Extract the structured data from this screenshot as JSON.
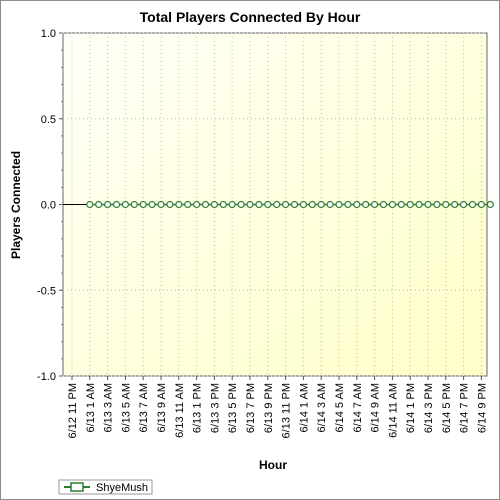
{
  "chart_data": {
    "type": "line",
    "title": "Total Players Connected By Hour",
    "xlabel": "Hour",
    "ylabel": "Players Connected",
    "ylim": [
      -1.0,
      1.0
    ],
    "y_ticks": [
      "1.0",
      "0.5",
      "0.0",
      "-0.5",
      "-1.0"
    ],
    "grid": true,
    "legend_position": "bottom-left",
    "x_tick_labels": [
      "6/12 11 PM",
      "6/13 1 AM",
      "6/13 3 AM",
      "6/13 5 AM",
      "6/13 7 AM",
      "6/13 9 AM",
      "6/13 11 AM",
      "6/13 1 PM",
      "6/13 3 PM",
      "6/13 5 PM",
      "6/13 7 PM",
      "6/13 9 PM",
      "6/13 11 PM",
      "6/14 1 AM",
      "6/14 3 AM",
      "6/14 5 AM",
      "6/14 7 AM",
      "6/14 9 AM",
      "6/14 11 AM",
      "6/14 1 PM",
      "6/14 3 PM",
      "6/14 5 PM",
      "6/14 7 PM",
      "6/14 9 PM"
    ],
    "series": [
      {
        "name": "ShyeMush",
        "color": "#2e7d32",
        "x": [
          "6/13 1 AM",
          "6/13 2 AM",
          "6/13 3 AM",
          "6/13 4 AM",
          "6/13 5 AM",
          "6/13 6 AM",
          "6/13 7 AM",
          "6/13 8 AM",
          "6/13 9 AM",
          "6/13 10 AM",
          "6/13 11 AM",
          "6/13 12 PM",
          "6/13 1 PM",
          "6/13 2 PM",
          "6/13 3 PM",
          "6/13 4 PM",
          "6/13 5 PM",
          "6/13 6 PM",
          "6/13 7 PM",
          "6/13 8 PM",
          "6/13 9 PM",
          "6/13 10 PM",
          "6/13 11 PM",
          "6/14 12 AM",
          "6/14 1 AM",
          "6/14 2 AM",
          "6/14 3 AM",
          "6/14 4 AM",
          "6/14 5 AM",
          "6/14 6 AM",
          "6/14 7 AM",
          "6/14 8 AM",
          "6/14 9 AM",
          "6/14 10 AM",
          "6/14 11 AM",
          "6/14 12 PM",
          "6/14 1 PM",
          "6/14 2 PM",
          "6/14 3 PM",
          "6/14 4 PM",
          "6/14 5 PM",
          "6/14 6 PM",
          "6/14 7 PM",
          "6/14 8 PM",
          "6/14 9 PM",
          "6/14 10 PM"
        ],
        "values": [
          0,
          0,
          0,
          0,
          0,
          0,
          0,
          0,
          0,
          0,
          0,
          0,
          0,
          0,
          0,
          0,
          0,
          0,
          0,
          0,
          0,
          0,
          0,
          0,
          0,
          0,
          0,
          0,
          0,
          0,
          0,
          0,
          0,
          0,
          0,
          0,
          0,
          0,
          0,
          0,
          0,
          0,
          0,
          0,
          0,
          0
        ]
      }
    ],
    "colors": {
      "plot_bg_light": "#ffffe0",
      "plot_bg_dark": "#ffffd0",
      "grid": "#bbbbbb",
      "zero_line": "#000000"
    }
  }
}
